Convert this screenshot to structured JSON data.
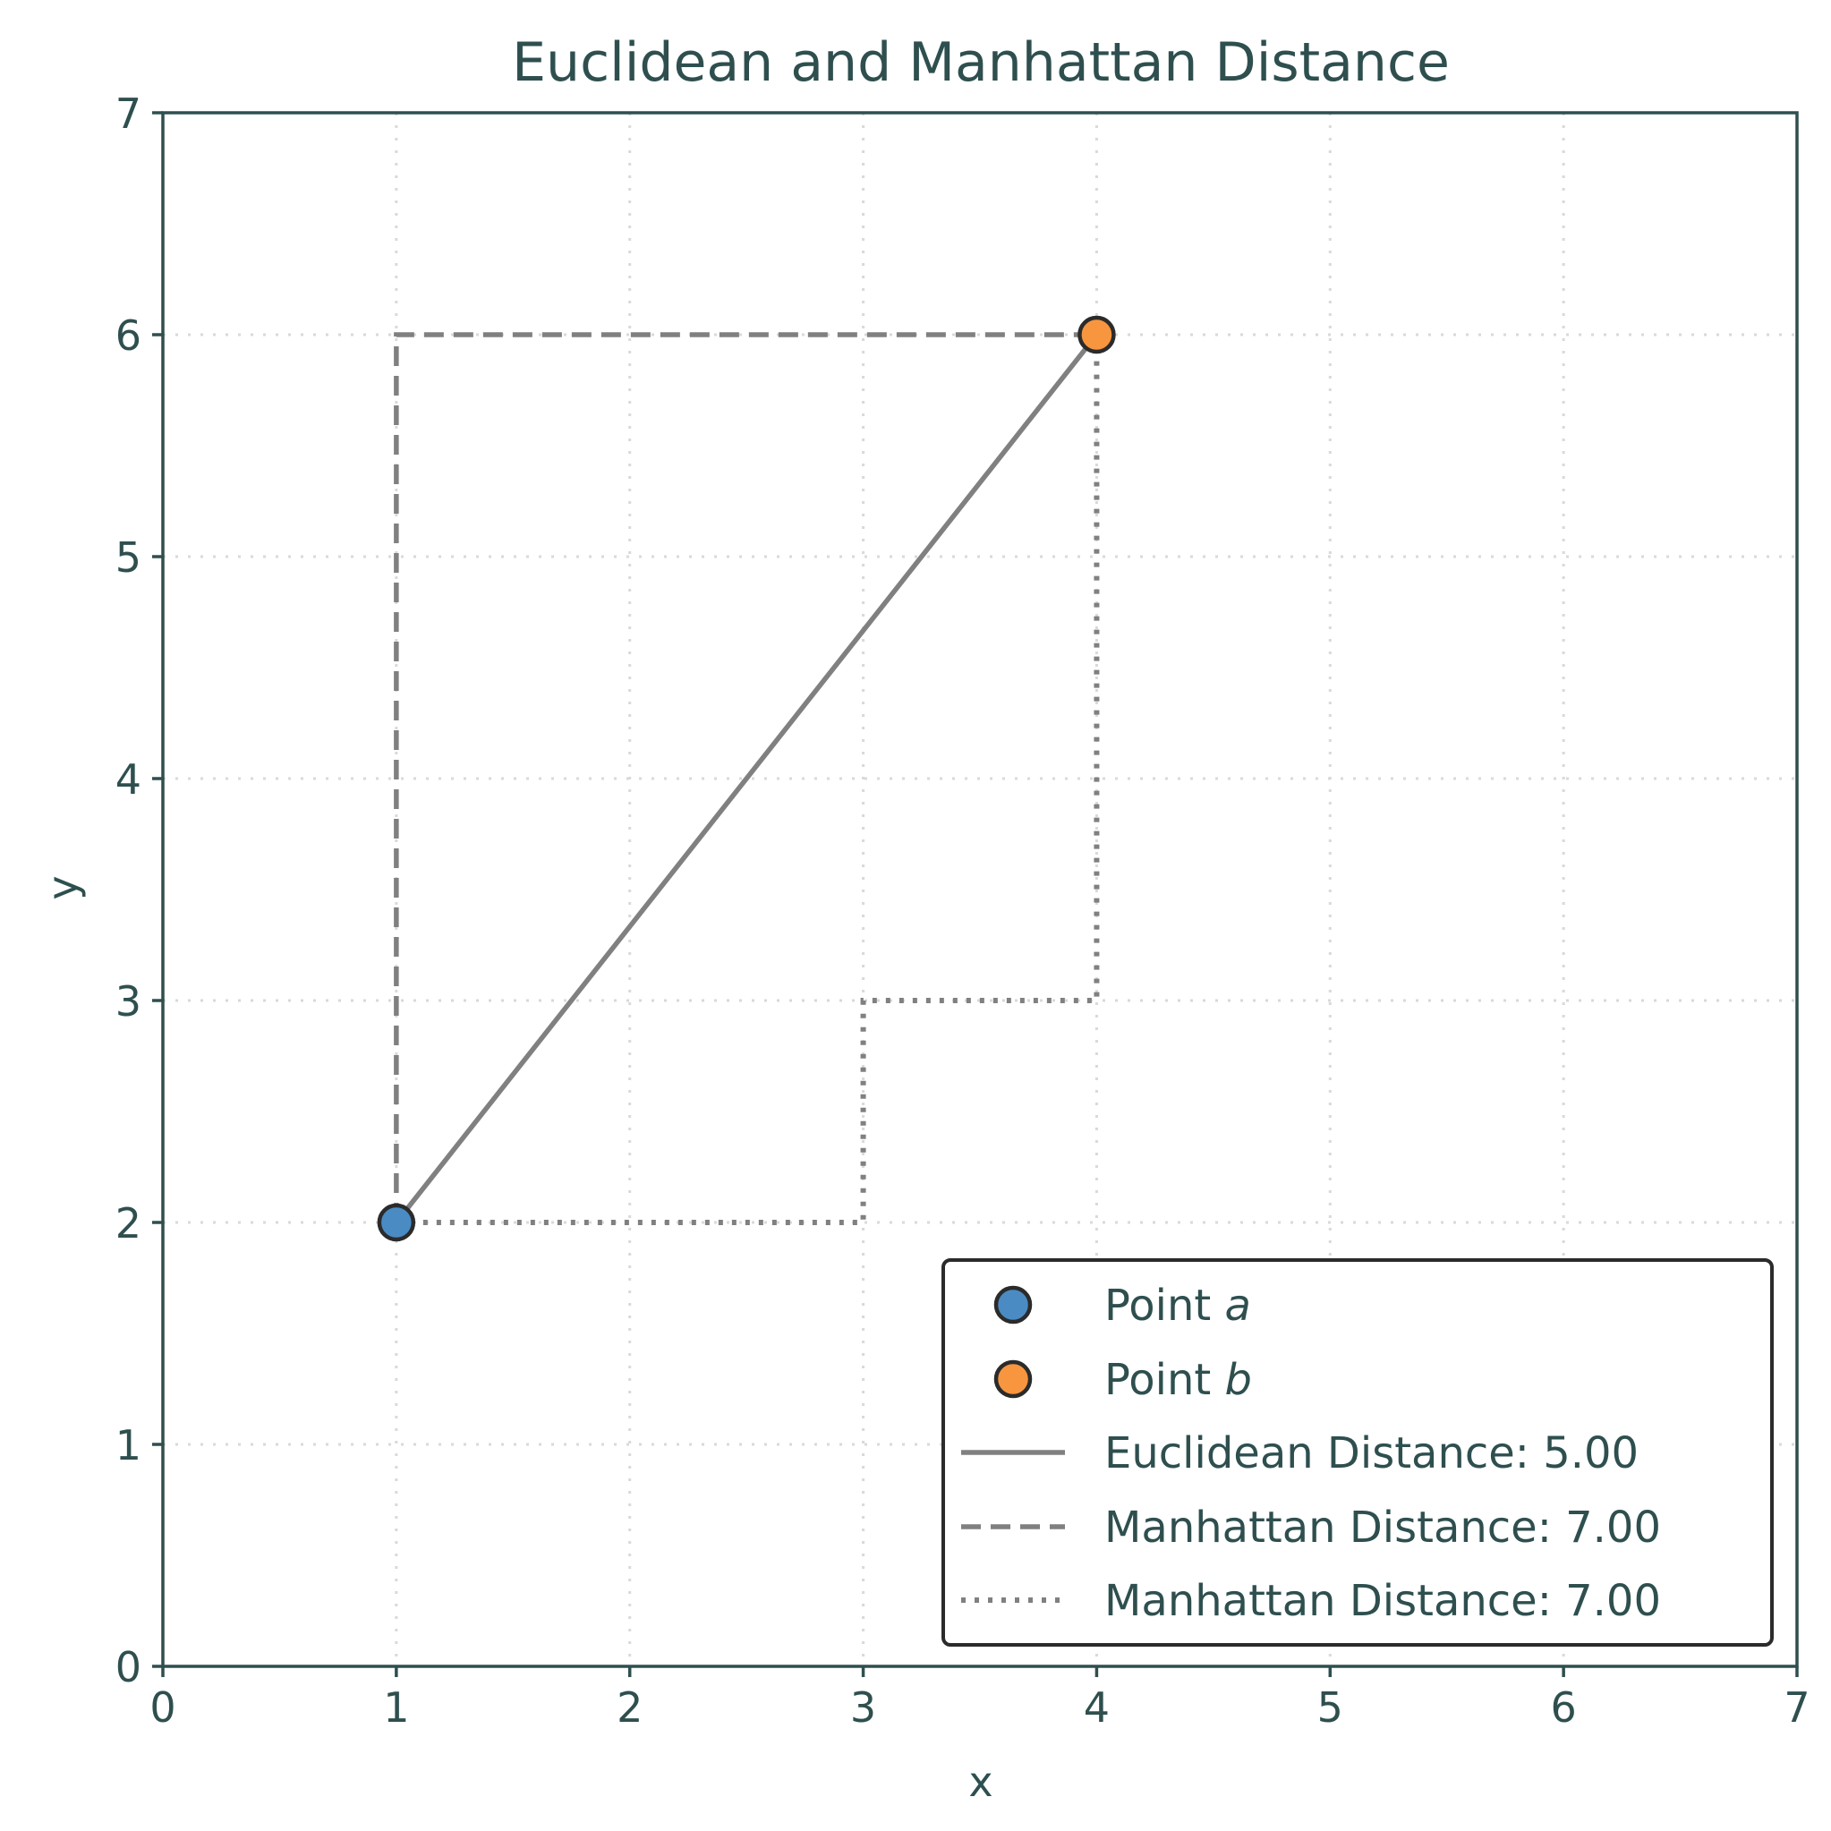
{
  "chart_data": {
    "type": "line",
    "title": "Euclidean and Manhattan Distance",
    "xlabel": "x",
    "ylabel": "y",
    "xlim": [
      0,
      7
    ],
    "ylim": [
      0,
      7
    ],
    "xticks": [
      0,
      1,
      2,
      3,
      4,
      5,
      6,
      7
    ],
    "yticks": [
      0,
      1,
      2,
      3,
      4,
      5,
      6,
      7
    ],
    "grid": true,
    "legend_position": "bottom-right",
    "points": [
      {
        "name": "Point a",
        "label_prefix": "Point ",
        "label_var": "a",
        "x": 1,
        "y": 2,
        "color": "#4a8bc4"
      },
      {
        "name": "Point b",
        "label_prefix": "Point ",
        "label_var": "b",
        "x": 4,
        "y": 6,
        "color": "#f7963f"
      }
    ],
    "series": [
      {
        "name": "Euclidean Distance: 5.00",
        "style": "solid",
        "color": "#808080",
        "x": [
          1,
          4
        ],
        "y": [
          2,
          6
        ]
      },
      {
        "name": "Manhattan Distance: 7.00",
        "style": "dashed",
        "color": "#808080",
        "x": [
          1,
          1,
          4
        ],
        "y": [
          2,
          6,
          6
        ]
      },
      {
        "name": "Manhattan Distance: 7.00",
        "style": "dotted",
        "color": "#808080",
        "x": [
          1,
          3,
          3,
          4,
          4
        ],
        "y": [
          2,
          2,
          3,
          3,
          6
        ]
      }
    ]
  }
}
